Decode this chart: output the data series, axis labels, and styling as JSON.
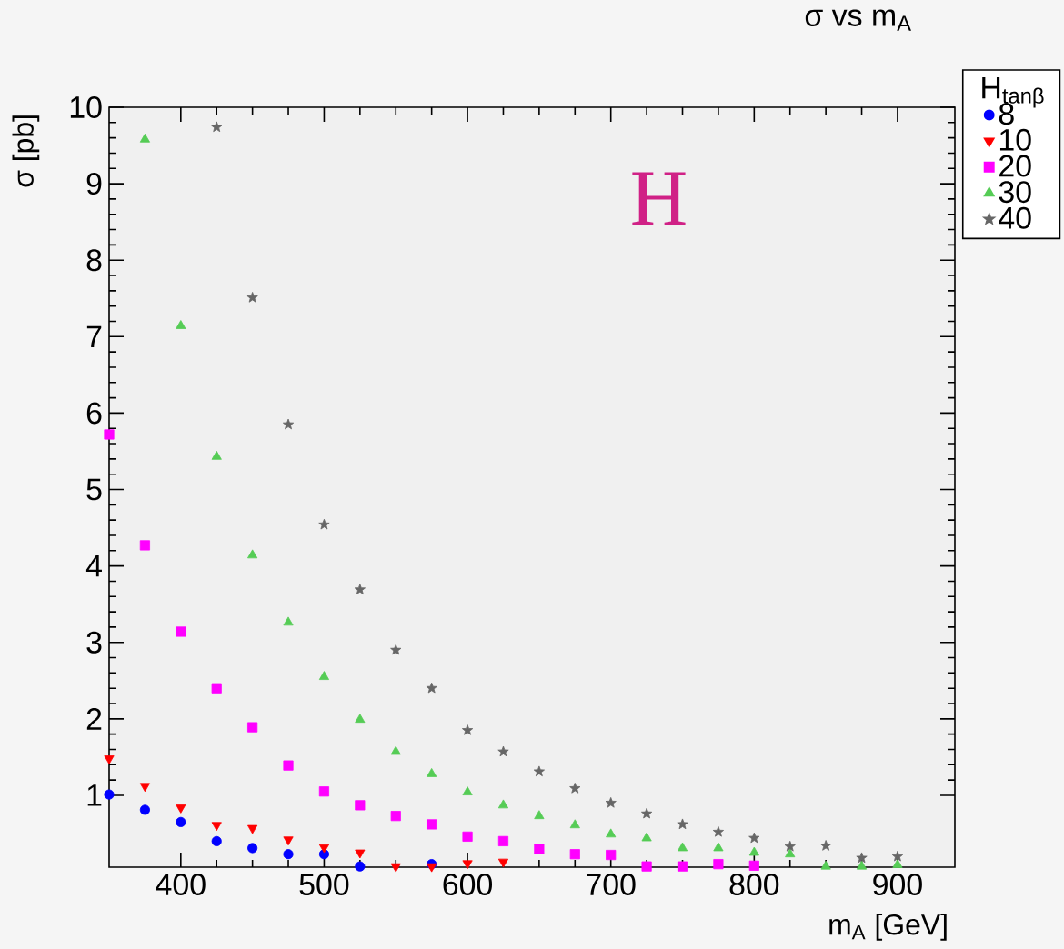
{
  "chart_data": {
    "type": "scatter",
    "title": "σ vs m$_{A}$",
    "legend_title": "H$_{tanβ}$",
    "xlabel": "m$_{A}$ [GeV]",
    "ylabel": "σ [pb]",
    "annotations": [
      "H"
    ],
    "xlim": [
      350,
      940
    ],
    "ylim": [
      0.06,
      10
    ],
    "xticks": [
      400,
      500,
      600,
      700,
      800,
      900
    ],
    "yticks": [
      1,
      2,
      3,
      4,
      5,
      6,
      7,
      8,
      9,
      10
    ],
    "grid": false,
    "legend": "top right",
    "series": [
      {
        "name": "8",
        "color": "#0000ff",
        "marker": "circle",
        "x": [
          350,
          375,
          400,
          425,
          450,
          475,
          500,
          525,
          575
        ],
        "values": [
          1.01,
          0.81,
          0.65,
          0.4,
          0.31,
          0.23,
          0.23,
          0.07,
          0.1
        ]
      },
      {
        "name": "10",
        "color": "#ff0000",
        "marker": "triangle-down",
        "x": [
          350,
          375,
          400,
          425,
          450,
          475,
          500,
          525,
          550,
          575,
          600,
          625
        ],
        "values": [
          1.48,
          1.12,
          0.84,
          0.61,
          0.57,
          0.42,
          0.32,
          0.25,
          0.07,
          0.07,
          0.11,
          0.13
        ]
      },
      {
        "name": "20",
        "color": "#ff00ff",
        "marker": "square",
        "x": [
          350,
          375,
          400,
          425,
          450,
          475,
          500,
          525,
          550,
          575,
          600,
          625,
          650,
          675,
          700,
          725,
          750,
          775,
          800
        ],
        "values": [
          5.72,
          4.27,
          3.14,
          2.4,
          1.89,
          1.39,
          1.05,
          0.87,
          0.73,
          0.62,
          0.46,
          0.4,
          0.3,
          0.23,
          0.22,
          0.07,
          0.07,
          0.1,
          0.08
        ]
      },
      {
        "name": "30",
        "color": "#55cc55",
        "marker": "triangle",
        "x": [
          375,
          400,
          425,
          450,
          475,
          500,
          525,
          550,
          575,
          600,
          625,
          650,
          675,
          700,
          725,
          750,
          775,
          800,
          825,
          850,
          875,
          900
        ],
        "values": [
          9.58,
          7.14,
          5.43,
          4.14,
          3.26,
          2.55,
          1.99,
          1.57,
          1.28,
          1.04,
          0.87,
          0.73,
          0.61,
          0.49,
          0.44,
          0.31,
          0.31,
          0.25,
          0.23,
          0.07,
          0.07,
          0.09
        ]
      },
      {
        "name": "40",
        "color": "#666666",
        "marker": "star",
        "x": [
          425,
          450,
          475,
          500,
          525,
          550,
          575,
          600,
          625,
          650,
          675,
          700,
          725,
          750,
          775,
          800,
          825,
          850,
          875,
          900
        ],
        "values": [
          9.74,
          7.51,
          5.85,
          4.54,
          3.69,
          2.9,
          2.4,
          1.85,
          1.57,
          1.31,
          1.09,
          0.9,
          0.76,
          0.62,
          0.52,
          0.44,
          0.33,
          0.34,
          0.18,
          0.2
        ]
      }
    ]
  }
}
